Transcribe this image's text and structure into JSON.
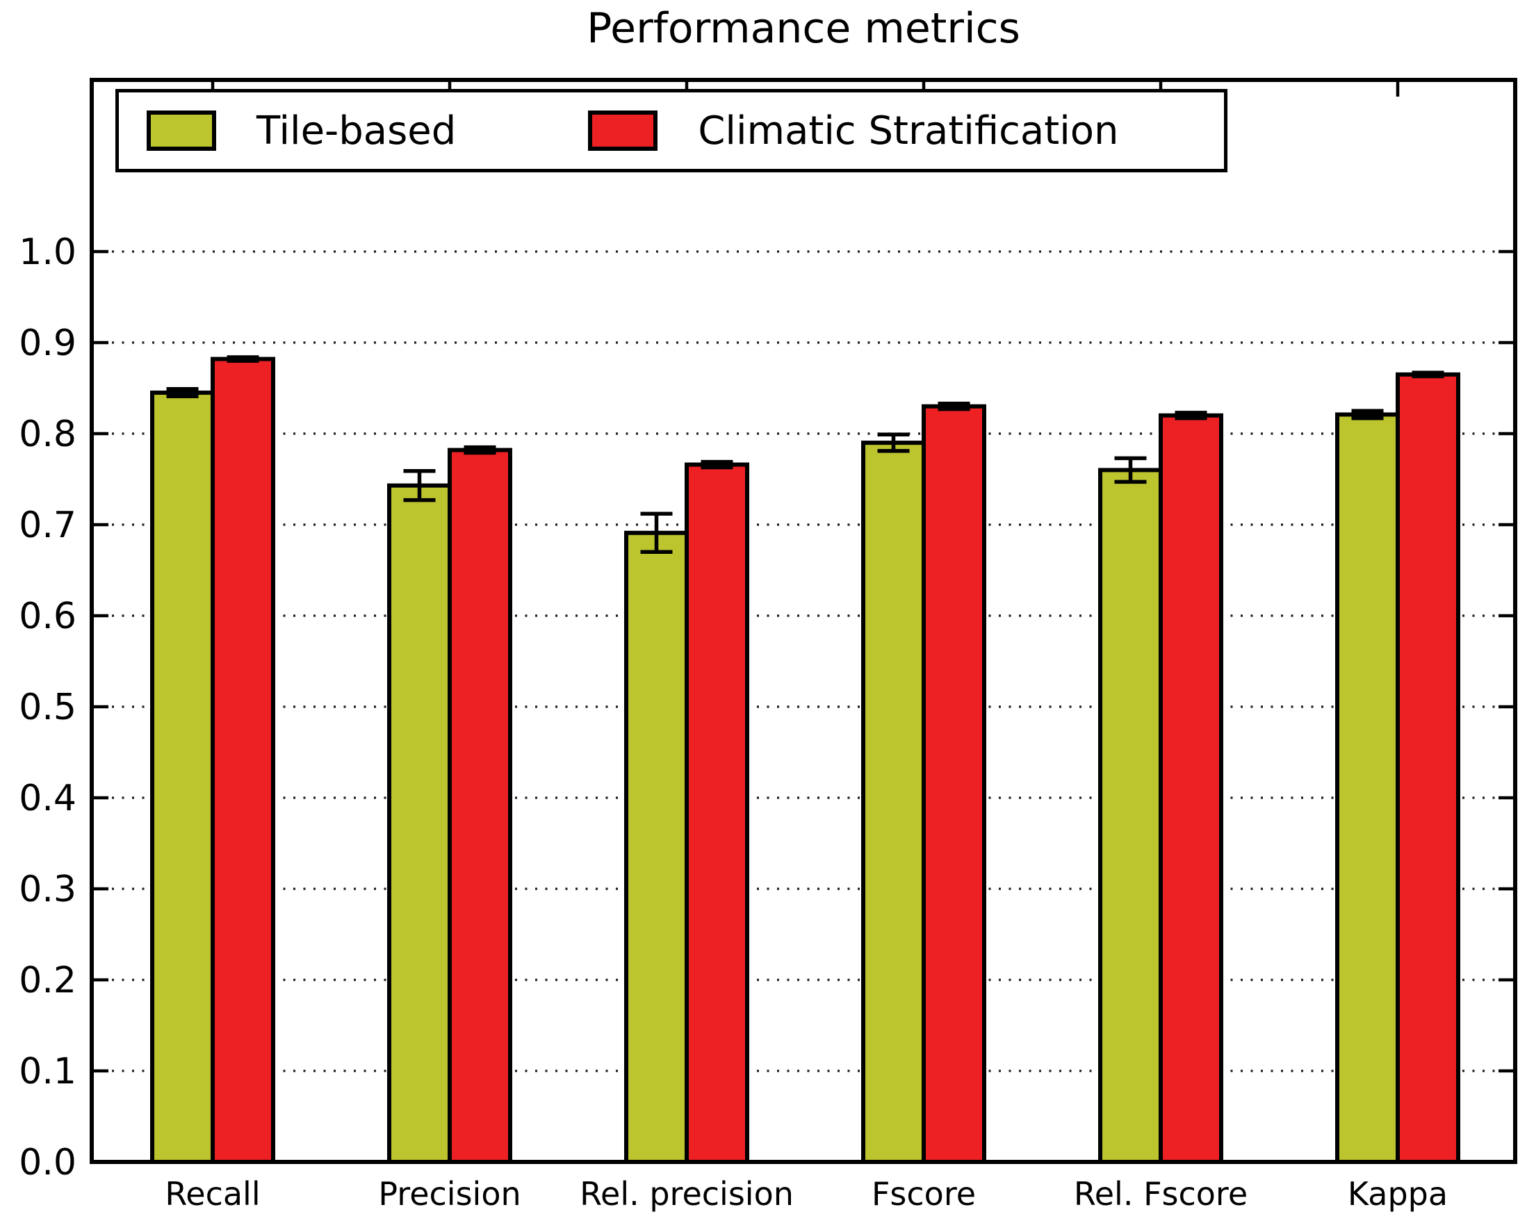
{
  "title": "Performance metrics",
  "legend": {
    "position": "upper left",
    "items": [
      {
        "label": "Tile-based",
        "color": "#bcc42e"
      },
      {
        "label": "Climatic Stratification",
        "color": "#ed2024"
      }
    ]
  },
  "axes": {
    "ytick_labels": [
      "0.0",
      "0.1",
      "0.2",
      "0.3",
      "0.4",
      "0.5",
      "0.6",
      "0.7",
      "0.8",
      "0.9",
      "1.0"
    ],
    "xtick_labels": [
      "Recall",
      "Precision",
      "Rel. precision",
      "Fscore",
      "Rel. Fscore",
      "Kappa"
    ]
  },
  "chart_data": {
    "type": "bar",
    "title": "Performance metrics",
    "categories": [
      "Recall",
      "Precision",
      "Rel. precision",
      "Fscore",
      "Rel. Fscore",
      "Kappa"
    ],
    "series": [
      {
        "name": "Tile-based",
        "color": "#bcc42e",
        "values": [
          0.845,
          0.743,
          0.691,
          0.79,
          0.76,
          0.821
        ],
        "errors": [
          0.004,
          0.016,
          0.021,
          0.009,
          0.013,
          0.004
        ]
      },
      {
        "name": "Climatic Stratification",
        "color": "#ed2024",
        "values": [
          0.882,
          0.782,
          0.766,
          0.83,
          0.82,
          0.865
        ],
        "errors": [
          0.002,
          0.003,
          0.003,
          0.003,
          0.003,
          0.002
        ]
      }
    ],
    "xlabel": "",
    "ylabel": "",
    "ylim": [
      0.0,
      1.19
    ],
    "yticks": [
      0.0,
      0.1,
      0.2,
      0.3,
      0.4,
      0.5,
      0.6,
      0.7,
      0.8,
      0.9,
      1.0
    ],
    "grid": "horizontal dotted at yticks",
    "error_bars": "vertical with caps",
    "legend_position": "upper left"
  }
}
